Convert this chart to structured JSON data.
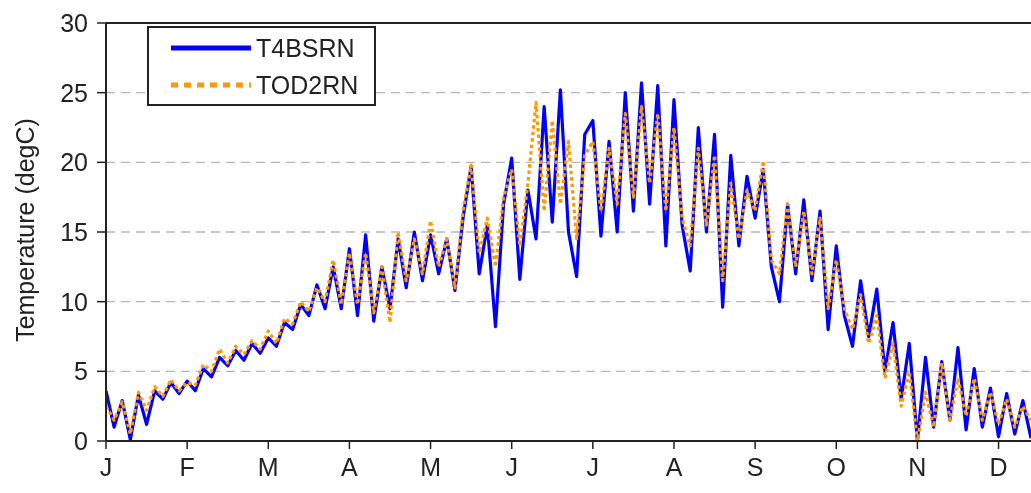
{
  "chart_data": {
    "type": "line",
    "ylabel": "Temperature (degC)",
    "categories": [
      "J",
      null,
      null,
      null,
      null,
      null,
      null,
      null,
      null,
      null,
      "F",
      null,
      null,
      null,
      null,
      null,
      null,
      null,
      null,
      null,
      "M",
      null,
      null,
      null,
      null,
      null,
      null,
      null,
      null,
      null,
      "A",
      null,
      null,
      null,
      null,
      null,
      null,
      null,
      null,
      null,
      "M",
      null,
      null,
      null,
      null,
      null,
      null,
      null,
      null,
      null,
      "J",
      null,
      null,
      null,
      null,
      null,
      null,
      null,
      null,
      null,
      "J",
      null,
      null,
      null,
      null,
      null,
      null,
      null,
      null,
      null,
      "A",
      null,
      null,
      null,
      null,
      null,
      null,
      null,
      null,
      null,
      "S",
      null,
      null,
      null,
      null,
      null,
      null,
      null,
      null,
      null,
      "O",
      null,
      null,
      null,
      null,
      null,
      null,
      null,
      null,
      null,
      "N",
      null,
      null,
      null,
      null,
      null,
      null,
      null,
      null,
      null,
      "D",
      null,
      null,
      null,
      null
    ],
    "series": [
      {
        "name": "T4BSRN",
        "color": "#0000ff",
        "line_style": "solid",
        "values": [
          3.6,
          1.0,
          2.9,
          0.1,
          3.3,
          1.2,
          3.6,
          3.0,
          4.2,
          3.4,
          4.3,
          3.6,
          5.2,
          4.6,
          6.0,
          5.4,
          6.5,
          5.8,
          7.0,
          6.3,
          7.4,
          6.8,
          8.5,
          8.0,
          9.8,
          9.0,
          11.2,
          9.5,
          12.5,
          9.5,
          13.8,
          9.0,
          14.8,
          8.6,
          12.5,
          9.5,
          14.5,
          11.0,
          15.0,
          11.5,
          14.8,
          12.0,
          14.5,
          10.8,
          16.0,
          19.7,
          12.0,
          15.5,
          8.2,
          17.0,
          20.3,
          11.6,
          18.0,
          14.5,
          24.0,
          15.7,
          25.2,
          15.0,
          11.8,
          22.0,
          23.0,
          14.7,
          21.5,
          15.0,
          25.0,
          16.5,
          25.7,
          17.0,
          25.5,
          14.0,
          24.5,
          15.5,
          12.2,
          22.5,
          15.0,
          22.0,
          9.6,
          20.5,
          14.0,
          19.0,
          16.0,
          19.5,
          12.5,
          10.0,
          17.0,
          12.0,
          17.3,
          11.5,
          16.5,
          8.0,
          14.0,
          9.0,
          6.8,
          11.5,
          7.5,
          10.9,
          5.0,
          8.5,
          3.0,
          7.0,
          0.0,
          6.0,
          1.0,
          5.7,
          1.5,
          6.7,
          0.8,
          5.2,
          1.0,
          3.8,
          0.3,
          3.4,
          0.5,
          2.9,
          0.2
        ]
      },
      {
        "name": "TOD2RN",
        "color": "#ff9900",
        "line_style": "dotted",
        "values": [
          2.5,
          1.5,
          2.8,
          0.5,
          3.5,
          2.2,
          3.9,
          3.2,
          4.4,
          3.6,
          4.2,
          4.0,
          5.5,
          5.0,
          6.6,
          5.6,
          6.8,
          6.2,
          7.2,
          6.6,
          7.9,
          7.0,
          8.8,
          8.4,
          10.0,
          9.3,
          11.0,
          10.0,
          13.0,
          9.8,
          13.5,
          9.8,
          13.5,
          9.2,
          12.5,
          8.5,
          15.0,
          11.5,
          14.5,
          12.0,
          15.8,
          12.5,
          14.5,
          11.0,
          16.5,
          19.8,
          13.5,
          16.0,
          12.5,
          17.5,
          19.5,
          14.0,
          18.5,
          24.3,
          16.5,
          23.0,
          17.0,
          21.5,
          14.5,
          20.5,
          21.5,
          16.5,
          21.0,
          17.0,
          23.5,
          17.5,
          24.0,
          18.5,
          23.5,
          16.5,
          22.5,
          16.0,
          14.0,
          21.0,
          15.5,
          20.5,
          11.5,
          18.5,
          14.5,
          18.0,
          16.5,
          20.1,
          13.0,
          12.0,
          17.0,
          12.5,
          16.5,
          12.0,
          16.0,
          9.5,
          13.0,
          9.5,
          8.0,
          10.5,
          7.0,
          9.0,
          4.5,
          7.0,
          2.5,
          5.0,
          0.0,
          3.5,
          1.0,
          5.6,
          1.5,
          4.5,
          1.8,
          4.5,
          1.5,
          3.5,
          1.2,
          3.0,
          1.0,
          2.5,
          1.5
        ]
      }
    ],
    "ylim": [
      0,
      30
    ],
    "yticks": [
      0,
      5,
      10,
      15,
      20,
      25,
      30
    ],
    "grid": "y",
    "legend": "top left"
  }
}
